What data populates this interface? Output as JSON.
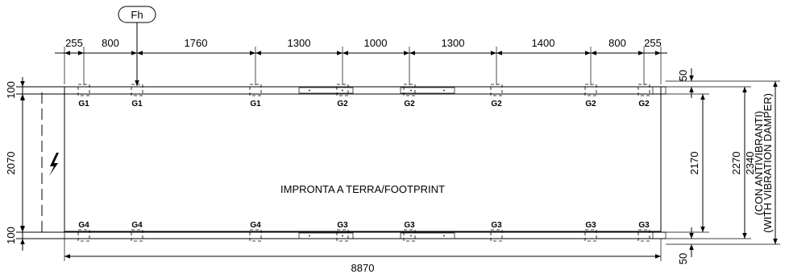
{
  "force_label": "Fh",
  "footprint_label": "IMPRONTA A TERRA/FOOTPRINT",
  "top_spacings": [
    "255",
    "800",
    "1760",
    "1300",
    "1000",
    "1300",
    "1400",
    "800",
    "255"
  ],
  "top_labels": [
    "G1",
    "G1",
    "G1",
    "G2",
    "G2",
    "G2",
    "G2",
    "G2"
  ],
  "bottom_labels": [
    "G4",
    "G4",
    "G4",
    "G3",
    "G3",
    "G3",
    "G3",
    "G3"
  ],
  "left_dims": {
    "top": "100",
    "middle": "2070",
    "bottom": "100"
  },
  "right_dims": {
    "offset_top": "50",
    "offset_bottom": "50",
    "inner": "2170",
    "outer": "2270",
    "overall_value": "2340",
    "overall_note_it": "(CON ANTIVIBRANTI)",
    "overall_note_en": "(WITH VIBRATION DAMPER)"
  },
  "length_dim": "8870",
  "icons": [
    "electrical-hazard-icon"
  ]
}
